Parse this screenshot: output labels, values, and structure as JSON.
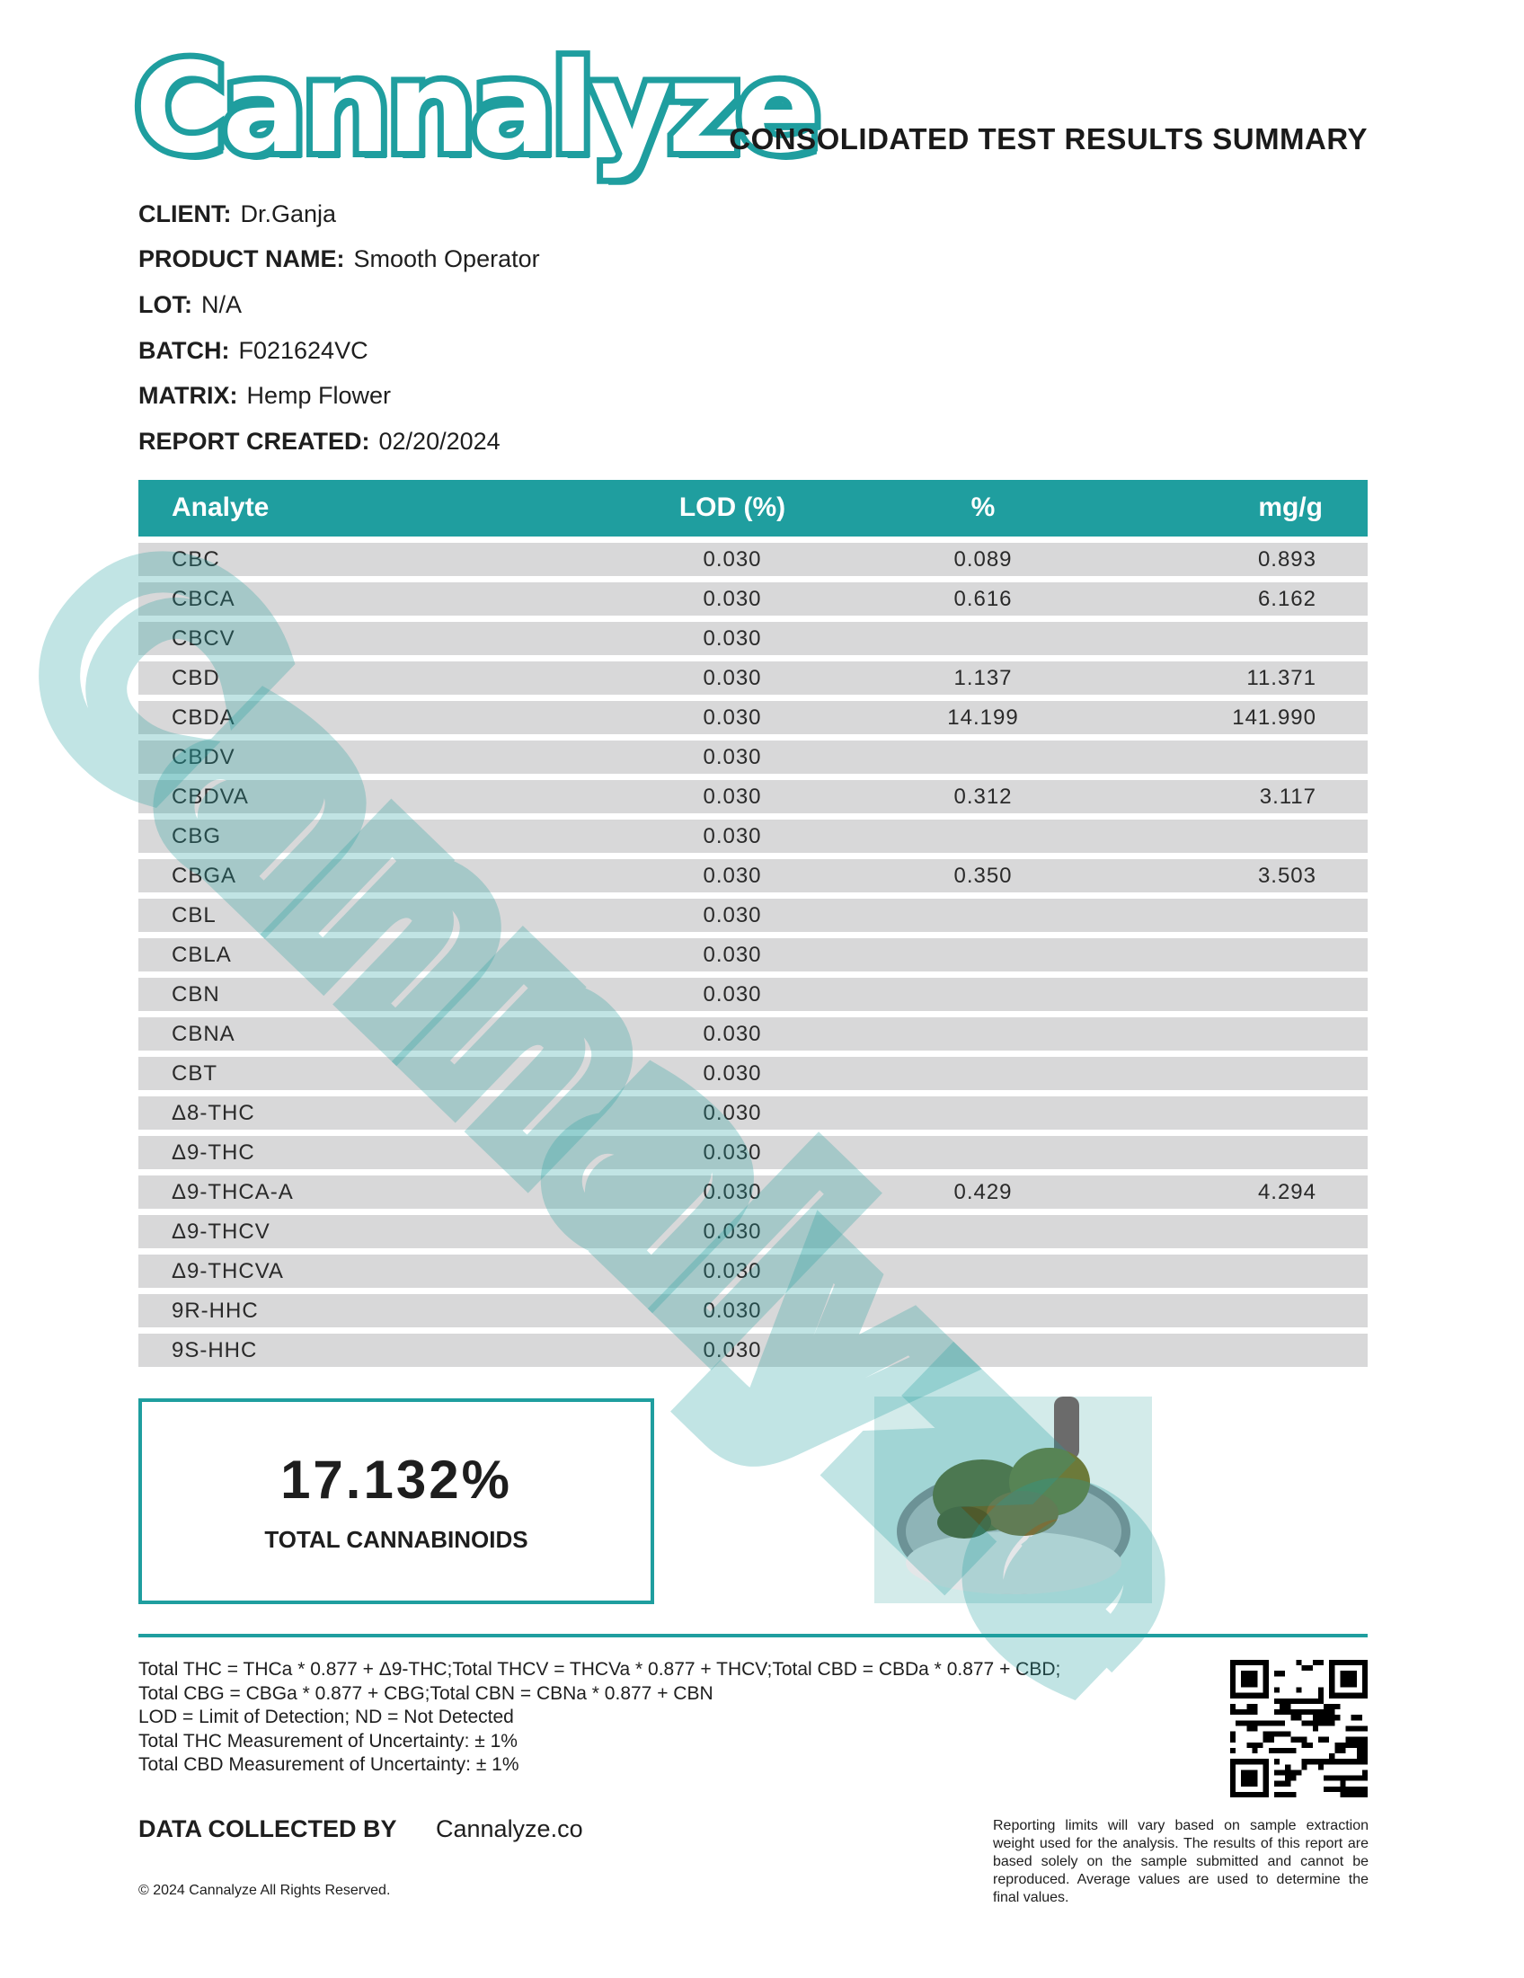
{
  "header": {
    "logo_text": "Cannalyze",
    "title": "CONSOLIDATED TEST RESULTS SUMMARY"
  },
  "info": [
    {
      "label": "CLIENT:",
      "value": "Dr.Ganja"
    },
    {
      "label": "PRODUCT NAME:",
      "value": "Smooth Operator"
    },
    {
      "label": "LOT:",
      "value": "N/A"
    },
    {
      "label": "BATCH:",
      "value": "F021624VC"
    },
    {
      "label": "MATRIX:",
      "value": "Hemp Flower"
    },
    {
      "label": "REPORT CREATED:",
      "value": "02/20/2024"
    }
  ],
  "table": {
    "columns": [
      "Analyte",
      "LOD (%)",
      "%",
      "mg/g"
    ],
    "rows": [
      [
        "CBC",
        "0.030",
        "0.089",
        "0.893"
      ],
      [
        "CBCA",
        "0.030",
        "0.616",
        "6.162"
      ],
      [
        "CBCV",
        "0.030",
        "",
        ""
      ],
      [
        "CBD",
        "0.030",
        "1.137",
        "11.371"
      ],
      [
        "CBDA",
        "0.030",
        "14.199",
        "141.990"
      ],
      [
        "CBDV",
        "0.030",
        "",
        ""
      ],
      [
        "CBDVA",
        "0.030",
        "0.312",
        "3.117"
      ],
      [
        "CBG",
        "0.030",
        "",
        ""
      ],
      [
        "CBGA",
        "0.030",
        "0.350",
        "3.503"
      ],
      [
        "CBL",
        "0.030",
        "",
        ""
      ],
      [
        "CBLA",
        "0.030",
        "",
        ""
      ],
      [
        "CBN",
        "0.030",
        "",
        ""
      ],
      [
        "CBNA",
        "0.030",
        "",
        ""
      ],
      [
        "CBT",
        "0.030",
        "",
        ""
      ],
      [
        "Δ8-THC",
        "0.030",
        "",
        ""
      ],
      [
        "Δ9-THC",
        "0.030",
        "",
        ""
      ],
      [
        "Δ9-THCA-A",
        "0.030",
        "0.429",
        "4.294"
      ],
      [
        "Δ9-THCV",
        "0.030",
        "",
        ""
      ],
      [
        "Δ9-THCVA",
        "0.030",
        "",
        ""
      ],
      [
        "9R-HHC",
        "0.030",
        "",
        ""
      ],
      [
        "9S-HHC",
        "0.030",
        "",
        ""
      ]
    ]
  },
  "summary": {
    "value": "17.132%",
    "label": "TOTAL CANNABINOIDS"
  },
  "notes": [
    "Total THC = THCa * 0.877 + Δ9-THC;Total THCV = THCVa * 0.877 + THCV;Total CBD = CBDa * 0.877 + CBD;",
    "Total CBG = CBGa * 0.877 + CBG;Total CBN = CBNa * 0.877 + CBN",
    "LOD = Limit of Detection; ND = Not Detected",
    "Total THC Measurement of Uncertainty: ± 1%",
    "Total CBD Measurement of Uncertainty: ± 1%"
  ],
  "footer": {
    "data_collected_label": "DATA COLLECTED BY",
    "data_collected_value": "Cannalyze.co",
    "disclaimer": "Reporting limits will vary based on sample extraction weight used for the analysis. The results of this report are based solely on the sample submitted and cannot be reproduced. Average values are used to determine the final values.",
    "copyright": "© 2024 Cannalyze All Rights Reserved."
  },
  "colors": {
    "accent": "#1f9e9f",
    "row": "#d8d8d9"
  },
  "icons": {
    "qr": "qr-code",
    "photo": "product-photo"
  }
}
